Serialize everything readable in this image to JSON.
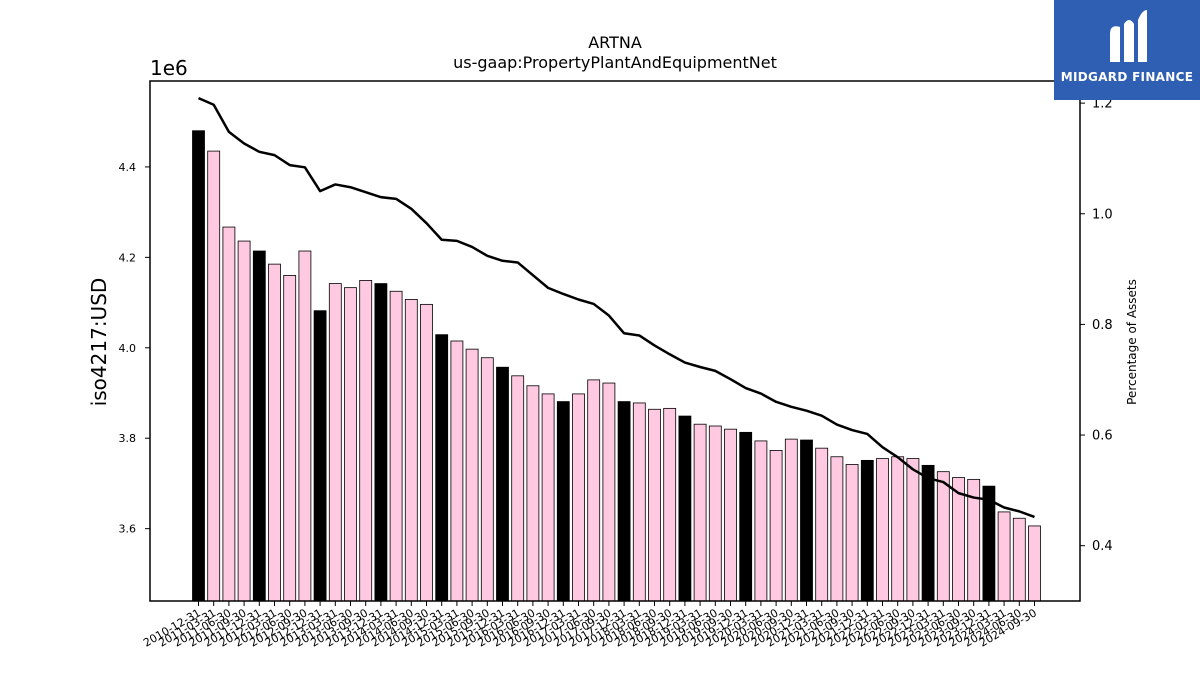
{
  "chart_data": {
    "type": "bar",
    "title": "ARTNA",
    "subtitle": "us-gaap:PropertyPlantAndEquipmentNet",
    "ylabel": "iso4217:USD",
    "y2label": "Percentage of Assets",
    "y_offset_label": "1e6",
    "ylim": [
      3.44,
      4.59
    ],
    "y2lim": [
      0.3,
      1.24
    ],
    "yticks": [
      "3.6",
      "3.8",
      "4.0",
      "4.2",
      "4.4"
    ],
    "y2ticks": [
      "0.4",
      "0.6",
      "0.8",
      "1.0",
      "1.2"
    ],
    "categories": [
      "2010-12-31",
      "2011-03-31",
      "2011-06-30",
      "2011-09-30",
      "2011-12-31",
      "2012-03-31",
      "2012-06-30",
      "2012-09-30",
      "2012-12-31",
      "2013-03-31",
      "2013-06-30",
      "2013-09-30",
      "2013-12-31",
      "2014-03-31",
      "2014-06-30",
      "2014-09-30",
      "2014-12-31",
      "2015-03-31",
      "2015-06-30",
      "2015-09-30",
      "2015-12-31",
      "2016-03-31",
      "2016-06-30",
      "2016-09-30",
      "2016-12-31",
      "2017-03-31",
      "2017-06-30",
      "2017-09-30",
      "2017-12-31",
      "2018-03-31",
      "2018-06-30",
      "2018-09-30",
      "2018-12-31",
      "2019-03-31",
      "2019-06-30",
      "2019-09-30",
      "2019-12-31",
      "2020-03-31",
      "2020-06-30",
      "2020-09-30",
      "2020-12-31",
      "2021-03-31",
      "2021-06-30",
      "2021-09-30",
      "2021-12-31",
      "2022-03-31",
      "2022-06-30",
      "2022-09-30",
      "2022-12-31",
      "2023-03-31",
      "2023-06-30",
      "2023-09-30",
      "2023-12-31",
      "2024-03-31",
      "2024-06-30",
      "2024-09-30"
    ],
    "values": [
      4.48,
      4.435,
      4.267,
      4.236,
      4.214,
      4.185,
      4.16,
      4.214,
      4.082,
      4.142,
      4.133,
      4.149,
      4.142,
      4.125,
      4.107,
      4.096,
      4.029,
      4.015,
      3.997,
      3.978,
      3.957,
      3.938,
      3.916,
      3.898,
      3.881,
      3.898,
      3.929,
      3.922,
      3.881,
      3.878,
      3.864,
      3.866,
      3.849,
      3.831,
      3.827,
      3.82,
      3.813,
      3.794,
      3.773,
      3.798,
      3.796,
      3.778,
      3.759,
      3.742,
      3.751,
      3.755,
      3.759,
      3.755,
      3.74,
      3.726,
      3.713,
      3.709,
      3.694,
      3.637,
      3.623,
      3.606
    ],
    "highlight": [
      true,
      false,
      false,
      false,
      true,
      false,
      false,
      false,
      true,
      false,
      false,
      false,
      true,
      false,
      false,
      false,
      true,
      false,
      false,
      false,
      true,
      false,
      false,
      false,
      true,
      false,
      false,
      false,
      true,
      false,
      false,
      false,
      true,
      false,
      false,
      false,
      true,
      false,
      false,
      false,
      true,
      false,
      false,
      false,
      true,
      false,
      false,
      false,
      true,
      false,
      false,
      false,
      true,
      false,
      false,
      false
    ],
    "line_values": [
      1.209,
      1.197,
      1.148,
      1.127,
      1.112,
      1.106,
      1.088,
      1.084,
      1.041,
      1.053,
      1.048,
      1.039,
      1.03,
      1.027,
      1.009,
      0.983,
      0.953,
      0.951,
      0.94,
      0.924,
      0.915,
      0.912,
      0.889,
      0.866,
      0.855,
      0.845,
      0.837,
      0.816,
      0.784,
      0.78,
      0.762,
      0.746,
      0.731,
      0.723,
      0.716,
      0.701,
      0.685,
      0.675,
      0.66,
      0.651,
      0.644,
      0.635,
      0.619,
      0.609,
      0.602,
      0.578,
      0.56,
      0.538,
      0.522,
      0.515,
      0.495,
      0.487,
      0.483,
      0.469,
      0.462,
      0.452
    ],
    "colors": {
      "bar_highlight": "#000000",
      "bar_default": "#ffc9e1",
      "bar_edge": "#000000",
      "line": "#000000"
    },
    "grid": false
  },
  "logo": {
    "text": "MIDGARD FINANCE"
  }
}
